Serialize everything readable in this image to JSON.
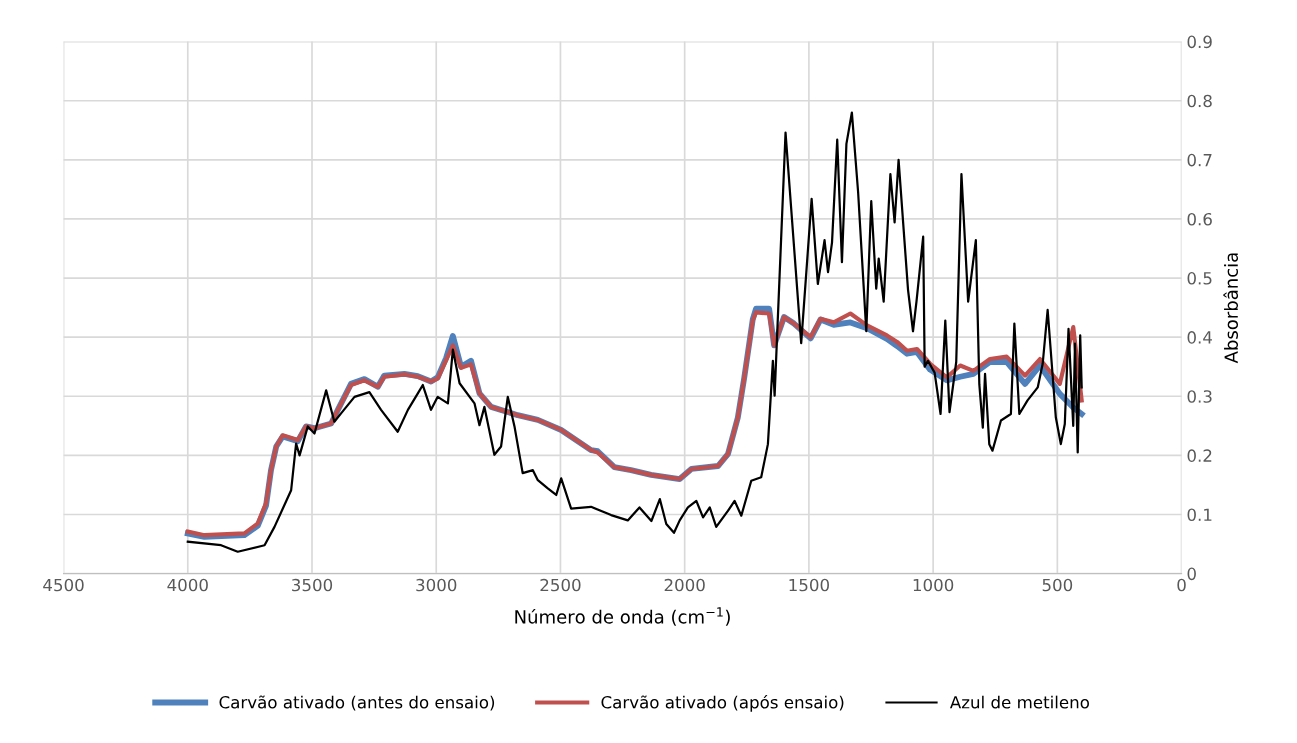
{
  "chart_data": {
    "type": "line",
    "xlabel": "Número de onda (cm$^{−1}$)",
    "ylabel": "Absorbância",
    "xlim": [
      4500,
      0
    ],
    "xticks": [
      4500,
      4000,
      3500,
      3000,
      2500,
      2000,
      1500,
      1000,
      500,
      0
    ],
    "ylim": [
      0,
      0.9
    ],
    "yticks": [
      0,
      0.1,
      0.2,
      0.3,
      0.4,
      0.5,
      0.6,
      0.7,
      0.8,
      0.9
    ],
    "grid": true,
    "legend": "bottom",
    "marker": "none",
    "line_style": "solid",
    "series": [
      {
        "name": "Carvão ativado (antes do ensaio)",
        "color": "#4f81bd",
        "x": [
          4000,
          3933,
          3772,
          3718,
          3685,
          3665,
          3644,
          3618,
          3557,
          3524,
          3490,
          3423,
          3396,
          3343,
          3289,
          3235,
          3209,
          3128,
          3074,
          3021,
          2994,
          2960,
          2933,
          2900,
          2860,
          2826,
          2779,
          2672,
          2591,
          2497,
          2377,
          2350,
          2283,
          2216,
          2135,
          2020,
          1973,
          1866,
          1826,
          1786,
          1760,
          1726,
          1713,
          1660,
          1640,
          1600,
          1560,
          1493,
          1453,
          1400,
          1333,
          1266,
          1186,
          1145,
          1105,
          1065,
          1012,
          945,
          891,
          838,
          771,
          704,
          630,
          570,
          490,
          436,
          402
        ],
        "values": [
          0.068,
          0.062,
          0.065,
          0.081,
          0.115,
          0.175,
          0.215,
          0.232,
          0.224,
          0.249,
          0.246,
          0.254,
          0.277,
          0.321,
          0.329,
          0.316,
          0.335,
          0.338,
          0.334,
          0.325,
          0.332,
          0.365,
          0.402,
          0.35,
          0.36,
          0.305,
          0.282,
          0.268,
          0.26,
          0.243,
          0.209,
          0.207,
          0.18,
          0.175,
          0.167,
          0.16,
          0.177,
          0.182,
          0.202,
          0.264,
          0.332,
          0.43,
          0.448,
          0.448,
          0.386,
          0.434,
          0.423,
          0.398,
          0.43,
          0.421,
          0.425,
          0.415,
          0.397,
          0.385,
          0.372,
          0.375,
          0.345,
          0.327,
          0.333,
          0.338,
          0.358,
          0.358,
          0.321,
          0.352,
          0.304,
          0.281,
          0.27
        ]
      },
      {
        "name": "Carvão ativado (após ensaio)",
        "color": "#c0504d",
        "x": [
          4000,
          3933,
          3772,
          3718,
          3685,
          3665,
          3644,
          3618,
          3557,
          3524,
          3490,
          3423,
          3396,
          3343,
          3289,
          3235,
          3209,
          3128,
          3074,
          3021,
          2994,
          2960,
          2933,
          2900,
          2860,
          2826,
          2779,
          2672,
          2591,
          2497,
          2377,
          2350,
          2283,
          2216,
          2135,
          2020,
          1973,
          1866,
          1826,
          1786,
          1760,
          1726,
          1713,
          1660,
          1640,
          1600,
          1560,
          1493,
          1453,
          1400,
          1333,
          1266,
          1186,
          1145,
          1105,
          1065,
          1012,
          945,
          891,
          838,
          771,
          704,
          630,
          570,
          490,
          436,
          402
        ],
        "values": [
          0.071,
          0.065,
          0.068,
          0.085,
          0.119,
          0.175,
          0.215,
          0.234,
          0.226,
          0.249,
          0.246,
          0.254,
          0.277,
          0.319,
          0.327,
          0.316,
          0.333,
          0.337,
          0.333,
          0.325,
          0.33,
          0.361,
          0.386,
          0.348,
          0.354,
          0.305,
          0.282,
          0.268,
          0.26,
          0.243,
          0.209,
          0.205,
          0.18,
          0.175,
          0.167,
          0.16,
          0.177,
          0.182,
          0.202,
          0.264,
          0.332,
          0.428,
          0.442,
          0.44,
          0.386,
          0.434,
          0.423,
          0.4,
          0.431,
          0.425,
          0.44,
          0.42,
          0.403,
          0.392,
          0.377,
          0.38,
          0.355,
          0.332,
          0.352,
          0.343,
          0.363,
          0.367,
          0.335,
          0.363,
          0.321,
          0.417,
          0.293
        ]
      },
      {
        "name": "Azul de metileno",
        "color": "#000000",
        "x": [
          4000,
          3866,
          3799,
          3691,
          3651,
          3584,
          3564,
          3550,
          3517,
          3490,
          3443,
          3410,
          3383,
          3329,
          3269,
          3222,
          3155,
          3114,
          3074,
          3054,
          3021,
          2994,
          2953,
          2933,
          2906,
          2846,
          2826,
          2806,
          2766,
          2739,
          2712,
          2685,
          2652,
          2611,
          2591,
          2551,
          2517,
          2497,
          2457,
          2377,
          2296,
          2229,
          2182,
          2134,
          2100,
          2074,
          2043,
          2020,
          1987,
          1953,
          1926,
          1899,
          1873,
          1826,
          1799,
          1772,
          1732,
          1692,
          1665,
          1645,
          1638,
          1594,
          1531,
          1489,
          1464,
          1437,
          1423,
          1407,
          1386,
          1367,
          1349,
          1327,
          1302,
          1269,
          1249,
          1229,
          1219,
          1199,
          1172,
          1155,
          1139,
          1101,
          1081,
          1067,
          1040,
          1034,
          1021,
          994,
          970,
          951,
          934,
          907,
          886,
          859,
          828,
          814,
          800,
          791,
          774,
          761,
          727,
          687,
          673,
          653,
          620,
          579,
          559,
          539,
          506,
          486,
          470,
          455,
          436,
          429,
          418,
          408,
          402
        ],
        "values": [
          0.054,
          0.048,
          0.037,
          0.048,
          0.079,
          0.141,
          0.22,
          0.2,
          0.249,
          0.237,
          0.31,
          0.257,
          0.271,
          0.299,
          0.307,
          0.277,
          0.24,
          0.277,
          0.305,
          0.319,
          0.277,
          0.299,
          0.288,
          0.379,
          0.322,
          0.288,
          0.251,
          0.282,
          0.201,
          0.215,
          0.299,
          0.249,
          0.17,
          0.175,
          0.158,
          0.144,
          0.133,
          0.161,
          0.11,
          0.113,
          0.099,
          0.09,
          0.112,
          0.089,
          0.126,
          0.084,
          0.069,
          0.09,
          0.112,
          0.123,
          0.095,
          0.112,
          0.079,
          0.106,
          0.123,
          0.098,
          0.157,
          0.163,
          0.219,
          0.36,
          0.301,
          0.746,
          0.39,
          0.634,
          0.49,
          0.564,
          0.51,
          0.56,
          0.734,
          0.527,
          0.727,
          0.78,
          0.646,
          0.41,
          0.63,
          0.482,
          0.533,
          0.46,
          0.676,
          0.594,
          0.7,
          0.48,
          0.41,
          0.46,
          0.57,
          0.35,
          0.36,
          0.34,
          0.27,
          0.428,
          0.273,
          0.358,
          0.676,
          0.46,
          0.564,
          0.32,
          0.247,
          0.338,
          0.219,
          0.208,
          0.259,
          0.27,
          0.423,
          0.27,
          0.293,
          0.315,
          0.355,
          0.446,
          0.264,
          0.219,
          0.253,
          0.414,
          0.25,
          0.389,
          0.205,
          0.403,
          0.315
        ]
      }
    ]
  }
}
